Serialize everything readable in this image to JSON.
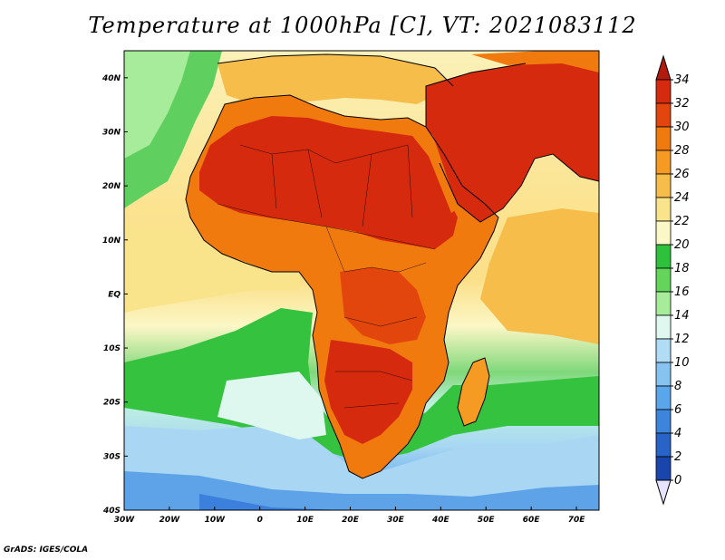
{
  "map": {
    "title": "Temperature at 1000hPa [C], VT: 2021083112",
    "credit": "GrADS: IGES/COLA",
    "longitude_labels": [
      "30W",
      "20W",
      "10W",
      "0",
      "10E",
      "20E",
      "30E",
      "40E",
      "50E",
      "60E",
      "70E"
    ],
    "latitude_labels": [
      "40N",
      "30N",
      "20N",
      "10N",
      "EQ",
      "10S",
      "20S",
      "30S",
      "40S"
    ],
    "lon_range": [
      -30,
      75
    ],
    "lat_range": [
      -40,
      45
    ],
    "colorbar": {
      "unit": "C",
      "levels": [
        "34",
        "32",
        "30",
        "28",
        "26",
        "24",
        "22",
        "20",
        "18",
        "16",
        "14",
        "12",
        "10",
        "8",
        "6",
        "4",
        "2",
        "0"
      ],
      "colors": [
        "#d62a0e",
        "#e3460c",
        "#f07a0e",
        "#f59a22",
        "#f7bd4a",
        "#f9e38b",
        "#fbf7c6",
        "#2ec23c",
        "#62d55a",
        "#a6ec9a",
        "#dff8ef",
        "#b1dcf5",
        "#86c3f1",
        "#5aa6ea",
        "#3d85dc",
        "#2863c7",
        "#1a45aa",
        "#0d2a84"
      ],
      "top_arrow_color": "#b11a0c",
      "bottom_arrow_color": "#e6e3ff"
    }
  }
}
